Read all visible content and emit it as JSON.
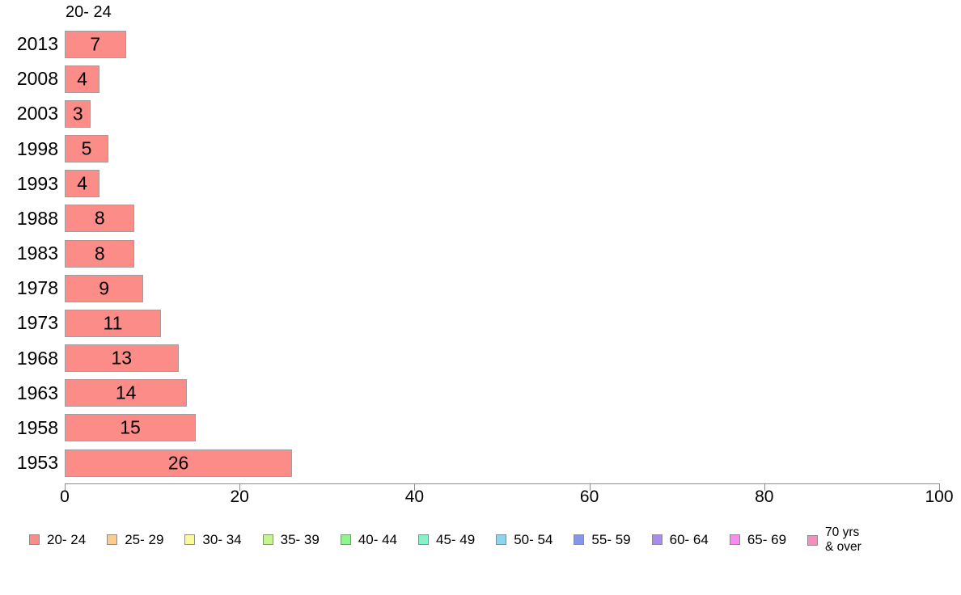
{
  "chart_data": {
    "type": "bar",
    "orientation": "horizontal",
    "title": "20- 24",
    "categories": [
      "2013",
      "2008",
      "2003",
      "1998",
      "1993",
      "1988",
      "1983",
      "1978",
      "1973",
      "1968",
      "1963",
      "1958",
      "1953"
    ],
    "values": [
      7,
      4,
      3,
      5,
      4,
      8,
      8,
      9,
      11,
      13,
      14,
      15,
      26
    ],
    "value_labels": "inside-center",
    "xlabel": "",
    "ylabel": "",
    "xlim": [
      0,
      100
    ],
    "xticks": [
      0,
      20,
      40,
      60,
      80,
      100
    ],
    "grid": false,
    "background": "#ffffff",
    "bar_color": "#fc8c87",
    "bar_border_color": "#9e9e9e",
    "text_color": "#000000",
    "legend_position": "bottom",
    "legend": [
      {
        "label": "20- 24",
        "color": "#fc8c87"
      },
      {
        "label": "25- 29",
        "color": "#fbcc8e"
      },
      {
        "label": "30- 34",
        "color": "#fafa98"
      },
      {
        "label": "35- 39",
        "color": "#c6f58f"
      },
      {
        "label": "40- 44",
        "color": "#90f590"
      },
      {
        "label": "45- 49",
        "color": "#86f2c8"
      },
      {
        "label": "50- 54",
        "color": "#8bd5f2"
      },
      {
        "label": "55- 59",
        "color": "#8495ec"
      },
      {
        "label": "60- 64",
        "color": "#a98aef"
      },
      {
        "label": "65- 69",
        "color": "#f98bf0"
      },
      {
        "label": "70 yrs\n& over",
        "color": "#f98bbe"
      }
    ]
  }
}
